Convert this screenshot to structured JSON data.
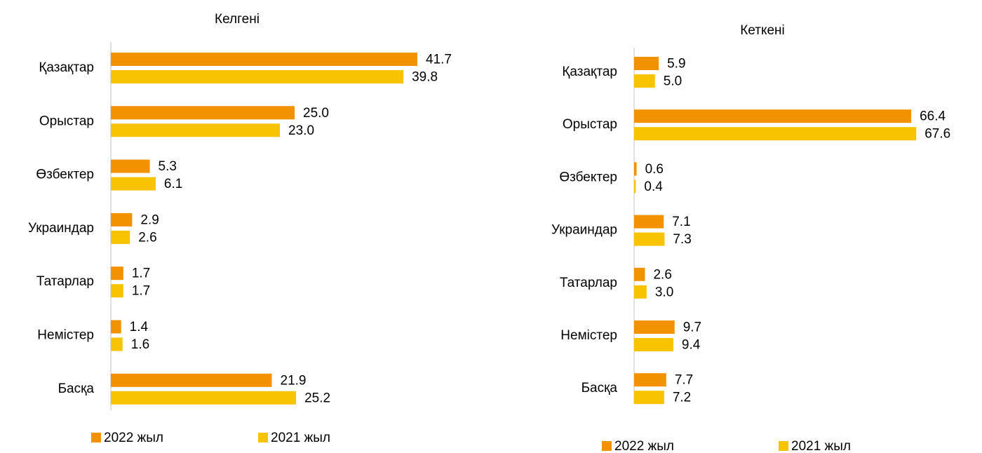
{
  "chart_data": [
    {
      "type": "bar",
      "orientation": "horizontal",
      "title": "Келгені",
      "categories": [
        "Қазақтар",
        "Орыстар",
        "Өзбектер",
        "Украиндар",
        "Татарлар",
        "Немістер",
        "Басқа"
      ],
      "xlim": [
        0,
        45
      ],
      "series": [
        {
          "name": "2022 жыл",
          "color": "#f39200",
          "values": [
            41.7,
            25,
            5.3,
            2.9,
            1.7,
            1.4,
            21.9
          ],
          "value_labels": [
            "41.7",
            "25.0",
            "5.3",
            "2.9",
            "1.7",
            "1.4",
            "21.9"
          ]
        },
        {
          "name": "2021 жыл",
          "color": "#f8c300",
          "values": [
            39.8,
            23,
            6.1,
            2.6,
            1.7,
            1.6,
            25.2
          ],
          "value_labels": [
            "39.8",
            "23.0",
            "6.1",
            "2.6",
            "1.7",
            "1.6",
            "25.2"
          ]
        }
      ]
    },
    {
      "type": "bar",
      "orientation": "horizontal",
      "title": "Кеткені",
      "categories": [
        "Қазақтар",
        "Орыстар",
        "Өзбектер",
        "Украиндар",
        "Татарлар",
        "Немістер",
        "Басқа"
      ],
      "xlim": [
        0,
        70
      ],
      "series": [
        {
          "name": "2022 жыл",
          "color": "#f39200",
          "values": [
            5.9,
            66.4,
            0.6,
            7.1,
            2.6,
            9.7,
            7.7
          ],
          "value_labels": [
            "5.9",
            "66.4",
            "0.6",
            "7.1",
            "2.6",
            "9.7",
            "7.7"
          ]
        },
        {
          "name": "2021 жыл",
          "color": "#f8c300",
          "values": [
            5,
            67.6,
            0.4,
            7.3,
            3,
            9.4,
            7.2
          ],
          "value_labels": [
            "5.0",
            "67.6",
            "0.4",
            "7.3",
            "3.0",
            "9.4",
            "7.2"
          ]
        }
      ]
    }
  ]
}
